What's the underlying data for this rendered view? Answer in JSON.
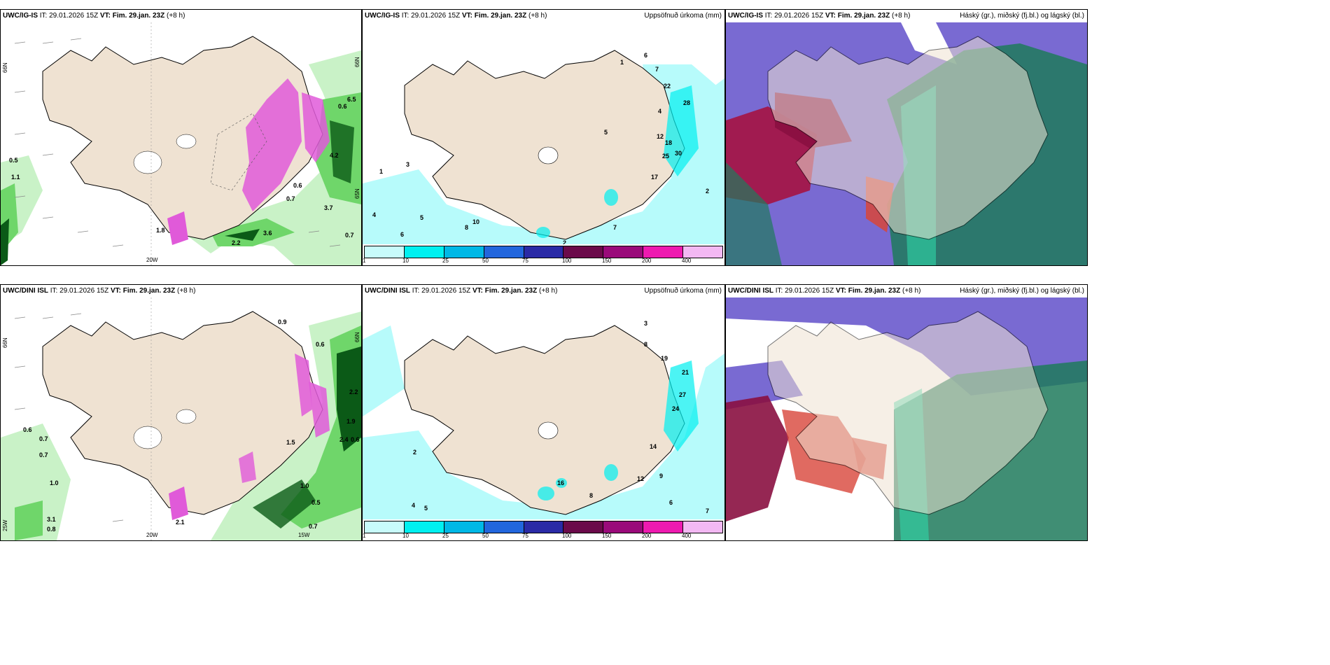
{
  "colors": {
    "land": "#efe2d2",
    "sea_white": "#ffffff",
    "precip_light": "#c9f2c7",
    "precip_mid": "#6fd66a",
    "precip_dark": "#0b5a17",
    "snow_magenta": "#e05ad9",
    "accum_cyan": "#b7fbfb",
    "cloud_high": "#6a5acd",
    "cloud_mid": "#a80d3a",
    "cloud_low": "#1f7a5c"
  },
  "panels": {
    "top_left": {
      "model": "UWC/IG-IS",
      "it_label": "IT:",
      "it_value": "29.01.2026 15Z",
      "vt_label": "VT:",
      "vt_value": "Fim. 29.jan. 23Z",
      "lead": "(+8 h)",
      "lat_label": "66N",
      "lon_label": "20W",
      "lat_right": "65N"
    },
    "top_mid": {
      "model": "UWC/IG-IS",
      "it_label": "IT:",
      "it_value": "29.01.2026 15Z",
      "vt_label": "VT:",
      "vt_value": "Fim. 29.jan. 23Z",
      "lead": "(+8 h)",
      "title_right": "Uppsöfnuð úrkoma (mm)"
    },
    "top_right": {
      "model": "UWC/IG-IS",
      "it_label": "IT:",
      "it_value": "29.01.2026 15Z",
      "vt_label": "VT:",
      "vt_value": "Fim. 29.jan. 23Z",
      "lead": "(+8 h)",
      "title_right": "Háský (gr.), miðský (fj.bl.) og lágský (bl.)"
    },
    "bot_left": {
      "model": "UWC/DINI ISL",
      "it_label": "IT:",
      "it_value": "29.01.2026 15Z",
      "vt_label": "VT:",
      "vt_value": "Fim. 29.jan. 23Z",
      "lead": "(+8 h)",
      "lat_label": "66N",
      "lon_label": "20W",
      "lon_label2": "15W",
      "lat_left2": "25W"
    },
    "bot_mid": {
      "model": "UWC/DINI ISL",
      "it_label": "IT:",
      "it_value": "29.01.2026 15Z",
      "vt_label": "VT:",
      "vt_value": "Fim. 29.jan. 23Z",
      "lead": "(+8 h)",
      "title_right": "Uppsöfnuð úrkoma (mm)"
    },
    "bot_right": {
      "model": "UWC/DINI ISL",
      "it_label": "IT:",
      "it_value": "29.01.2026 15Z",
      "vt_label": "VT:",
      "vt_value": "Fim. 29.jan. 23Z",
      "lead": "(+8 h)",
      "title_right": "Háský (gr.), miðský (fj.bl.) og lágský (bl.)"
    }
  },
  "legend": {
    "ticks": [
      "1",
      "10",
      "25",
      "50",
      "75",
      "100",
      "150",
      "200",
      "400"
    ],
    "swatch_colors": [
      "#c8fbfb",
      "#00f0f0",
      "#00b8e6",
      "#2266dd",
      "#2a2aa6",
      "#6b0a4a",
      "#9a0a7a",
      "#ee1ab0",
      "#f3b8f3"
    ]
  },
  "values": {
    "top_left": [
      "0.5",
      "1.1",
      "0.7",
      "0.6",
      "3.7",
      "0.7",
      "2.2",
      "3.6",
      "4.2",
      "1.8",
      "0.6",
      "6.5"
    ],
    "top_mid": [
      "1",
      "6",
      "7",
      "22",
      "28",
      "5",
      "12",
      "18",
      "25",
      "30",
      "17",
      "4",
      "3",
      "2",
      "5",
      "7",
      "10",
      "8",
      "6",
      "1",
      "2",
      "4"
    ],
    "bot_left": [
      "0.9",
      "0.6",
      "0.7",
      "1.0",
      "3.1",
      "0.8",
      "2.2",
      "1.9",
      "2.4",
      "0.6",
      "1.0",
      "0.5",
      "0.7",
      "2.1",
      "1.5"
    ],
    "bot_mid": [
      "3",
      "8",
      "19",
      "21",
      "27",
      "24",
      "14",
      "16",
      "12",
      "9",
      "2",
      "4",
      "5",
      "6",
      "7",
      "8"
    ]
  }
}
